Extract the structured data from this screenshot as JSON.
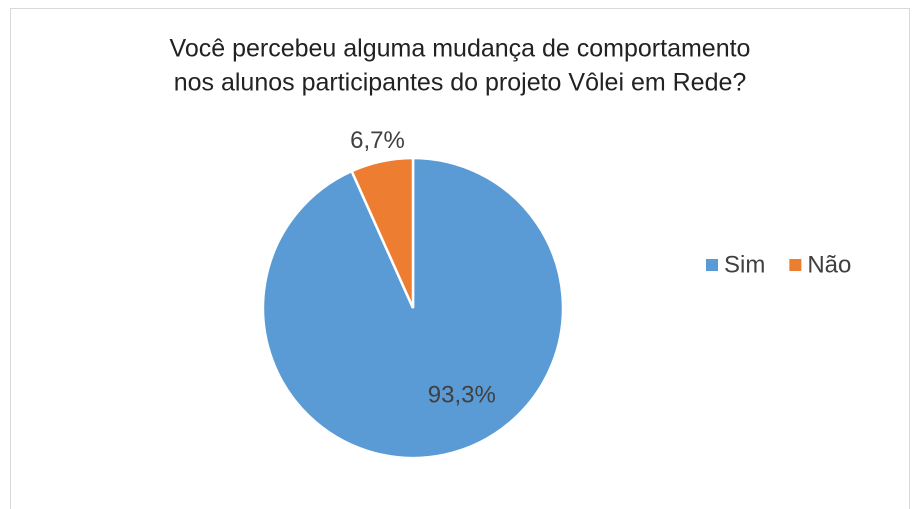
{
  "chart_data": {
    "type": "pie",
    "title": [
      "Você percebeu alguma mudança de comportamento",
      "nos alunos participantes do projeto Vôlei em Rede?"
    ],
    "categories": [
      "Sim",
      "Não"
    ],
    "values": [
      93.3,
      6.7
    ],
    "value_labels": [
      "93,3%",
      "6,7%"
    ],
    "colors": [
      "#5b9bd5",
      "#ed7d31"
    ],
    "legend": "right"
  }
}
